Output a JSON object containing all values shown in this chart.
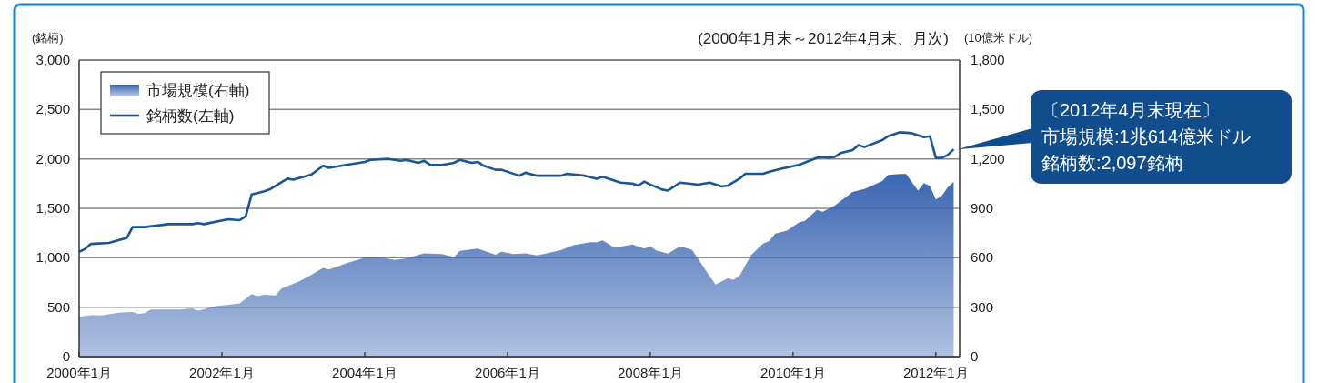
{
  "chart_data": {
    "type": "line",
    "title": "(2000年1月末～2012年4月末、月次)",
    "ylabel": "(銘柄)",
    "y2label": "(10億米ドル)",
    "annotations": [
      "〔2012年4月末現在〕",
      "市場規模:1兆614億米ドル",
      "銘柄数:2,097銘柄"
    ],
    "xlim": [
      "2000-01",
      "2012-05"
    ],
    "xticks": [
      {
        "value": "2000-01",
        "label": "2000年1月"
      },
      {
        "value": "2002-01",
        "label": "2002年1月"
      },
      {
        "value": "2004-01",
        "label": "2004年1月"
      },
      {
        "value": "2006-01",
        "label": "2006年1月"
      },
      {
        "value": "2008-01",
        "label": "2008年1月"
      },
      {
        "value": "2010-01",
        "label": "2010年1月"
      },
      {
        "value": "2012-01",
        "label": "2012年1月"
      }
    ],
    "ylim": [
      0,
      3000
    ],
    "yticks": [
      0,
      500,
      {
        "value": 1000,
        "label": "1,000"
      },
      {
        "value": 1500,
        "label": "1,500"
      },
      {
        "value": 2000,
        "label": "2,000"
      },
      {
        "value": 2500,
        "label": "2,500"
      },
      {
        "value": 3000,
        "label": "3,000"
      }
    ],
    "y2lim": [
      0,
      1800
    ],
    "y2ticks": [
      0,
      300,
      600,
      900,
      {
        "value": 1200,
        "label": "1,200"
      },
      {
        "value": 1500,
        "label": "1,500"
      },
      {
        "value": 1800,
        "label": "1,800"
      }
    ],
    "grid": "y",
    "legend": "top left",
    "series": [
      {
        "name": "市場規模(右軸)",
        "type": "area",
        "axis": "y2",
        "color": "#3a66b3",
        "x": [
          "2000-01",
          "2000-03",
          "2000-05",
          "2000-08",
          "2000-10",
          "2000-11",
          "2000-12",
          "2001-01",
          "2001-06",
          "2001-08",
          "2001-09",
          "2001-12",
          "2002-04",
          "2002-06",
          "2002-07",
          "2002-08",
          "2002-10",
          "2002-11",
          "2003-02",
          "2003-04",
          "2003-06",
          "2003-07",
          "2003-10",
          "2004-01",
          "2004-04",
          "2004-06",
          "2004-08",
          "2004-09",
          "2004-11",
          "2005-02",
          "2005-04",
          "2005-05",
          "2005-08",
          "2005-11",
          "2005-12",
          "2006-02",
          "2006-04",
          "2006-06",
          "2006-10",
          "2006-12",
          "2007-03",
          "2007-04",
          "2007-05",
          "2007-07",
          "2007-10",
          "2007-12",
          "2008-01",
          "2008-02",
          "2008-04",
          "2008-06",
          "2008-08",
          "2008-09",
          "2008-11",
          "2008-12",
          "2009-02",
          "2009-03",
          "2009-04",
          "2009-06",
          "2009-08",
          "2009-09",
          "2009-10",
          "2009-12",
          "2010-02",
          "2010-03",
          "2010-05",
          "2010-06",
          "2010-08",
          "2010-11",
          "2011-01",
          "2011-04",
          "2011-05",
          "2011-07",
          "2011-08",
          "2011-10",
          "2011-11",
          "2011-12",
          "2012-01",
          "2012-02",
          "2012-03",
          "2012-04"
        ],
        "values": [
          242,
          251,
          251,
          268,
          271,
          259,
          264,
          286,
          286,
          293,
          279,
          306,
          323,
          380,
          367,
          376,
          371,
          413,
          457,
          495,
          539,
          529,
          567,
          600,
          600,
          587,
          596,
          607,
          627,
          622,
          605,
          642,
          655,
          618,
          636,
          622,
          627,
          614,
          646,
          677,
          694,
          694,
          705,
          661,
          681,
          655,
          669,
          644,
          625,
          669,
          649,
          596,
          486,
          438,
          475,
          466,
          490,
          618,
          686,
          701,
          747,
          765,
          815,
          824,
          890,
          879,
          916,
          1000,
          1018,
          1066,
          1103,
          1108,
          1108,
          1007,
          1053,
          1037,
          954,
          976,
          1027,
          1061
        ]
      },
      {
        "name": "銘柄数(左軸)",
        "color": "#1a5596",
        "x": [
          "2000-01",
          "2000-02",
          "2000-03",
          "2000-06",
          "2000-09",
          "2000-10",
          "2000-12",
          "2001-04",
          "2001-08",
          "2001-09",
          "2001-10",
          "2002-02",
          "2002-04",
          "2002-05",
          "2002-06",
          "2002-08",
          "2002-09",
          "2002-12",
          "2003-01",
          "2003-04",
          "2003-06",
          "2003-07",
          "2003-09",
          "2004-01",
          "2004-02",
          "2004-05",
          "2004-07",
          "2004-08",
          "2004-10",
          "2004-11",
          "2004-12",
          "2005-02",
          "2005-04",
          "2005-05",
          "2005-07",
          "2005-08",
          "2005-09",
          "2005-11",
          "2005-12",
          "2006-03",
          "2006-04",
          "2006-06",
          "2006-10",
          "2006-11",
          "2007-02",
          "2007-04",
          "2007-05",
          "2007-06",
          "2007-08",
          "2007-10",
          "2007-11",
          "2007-12",
          "2008-01",
          "2008-03",
          "2008-04",
          "2008-06",
          "2008-09",
          "2008-11",
          "2009-01",
          "2009-02",
          "2009-04",
          "2009-05",
          "2009-08",
          "2009-09",
          "2009-11",
          "2010-02",
          "2010-05",
          "2010-06",
          "2010-07",
          "2010-08",
          "2010-09",
          "2010-11",
          "2010-12",
          "2011-01",
          "2011-04",
          "2011-05",
          "2011-07",
          "2011-09",
          "2011-11",
          "2011-12",
          "2012-01",
          "2012-02",
          "2012-03",
          "2012-04"
        ],
        "values": [
          1060,
          1090,
          1140,
          1150,
          1200,
          1310,
          1310,
          1340,
          1340,
          1350,
          1340,
          1390,
          1380,
          1420,
          1640,
          1670,
          1690,
          1800,
          1790,
          1840,
          1930,
          1910,
          1930,
          1970,
          1990,
          2000,
          1980,
          1990,
          1960,
          1980,
          1940,
          1940,
          1960,
          1990,
          1960,
          1970,
          1930,
          1890,
          1890,
          1830,
          1860,
          1830,
          1830,
          1850,
          1830,
          1800,
          1820,
          1800,
          1760,
          1750,
          1730,
          1770,
          1740,
          1690,
          1680,
          1760,
          1740,
          1760,
          1720,
          1730,
          1800,
          1850,
          1850,
          1870,
          1900,
          1940,
          2010,
          2020,
          2010,
          2020,
          2060,
          2090,
          2140,
          2120,
          2190,
          2230,
          2270,
          2260,
          2220,
          2230,
          2010,
          2010,
          2040,
          2097
        ]
      }
    ]
  }
}
